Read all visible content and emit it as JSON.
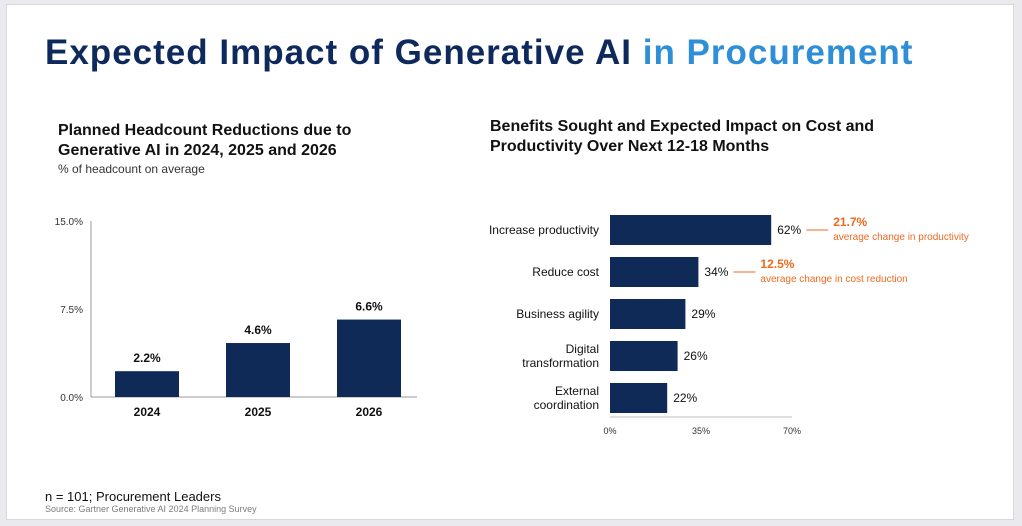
{
  "page": {
    "title_main": "Expected Impact of Generative AI",
    "title_accent": "in Procurement",
    "footnote": "n = 101; Procurement Leaders",
    "source": "Source: Gartner Generative AI 2024 Planning Survey"
  },
  "colors": {
    "navy": "#0e2a5c",
    "bar": "#0f2a57",
    "accent_blue": "#2e8fd6",
    "annotation_orange": "#ec6a1f"
  },
  "chart_data": [
    {
      "type": "bar",
      "title": "Planned Headcount Reductions due to Generative AI in 2024, 2025 and 2026",
      "subtitle": "% of headcount on average",
      "categories": [
        "2024",
        "2025",
        "2026"
      ],
      "values": [
        2.2,
        4.6,
        6.6
      ],
      "value_labels": [
        "2.2%",
        "4.6%",
        "6.6%"
      ],
      "ylim": [
        0,
        15
      ],
      "yticks": [
        0,
        7.5,
        15
      ],
      "ytick_labels": [
        "0.0%",
        "7.5%",
        "15.0%"
      ],
      "xlabel": "",
      "ylabel": "",
      "grid": false
    },
    {
      "type": "bar",
      "orientation": "horizontal",
      "title": "Benefits Sought and Expected Impact on Cost and Productivity Over Next 12-18 Months",
      "categories": [
        [
          "Increase productivity"
        ],
        [
          "Reduce cost"
        ],
        [
          "Business agility"
        ],
        [
          "Digital",
          "transformation"
        ],
        [
          "External",
          "coordination"
        ]
      ],
      "values": [
        62,
        34,
        29,
        26,
        22
      ],
      "value_labels": [
        "62%",
        "34%",
        "29%",
        "26%",
        "22%"
      ],
      "xlim": [
        0,
        70
      ],
      "xticks": [
        0,
        35,
        70
      ],
      "xtick_labels": [
        "0%",
        "35%",
        "70%"
      ],
      "grid": false,
      "annotations": [
        {
          "category_index": 0,
          "value": "21.7%",
          "label": "average change in productivity"
        },
        {
          "category_index": 1,
          "value": "12.5%",
          "label": "average change in cost reduction"
        }
      ]
    }
  ]
}
